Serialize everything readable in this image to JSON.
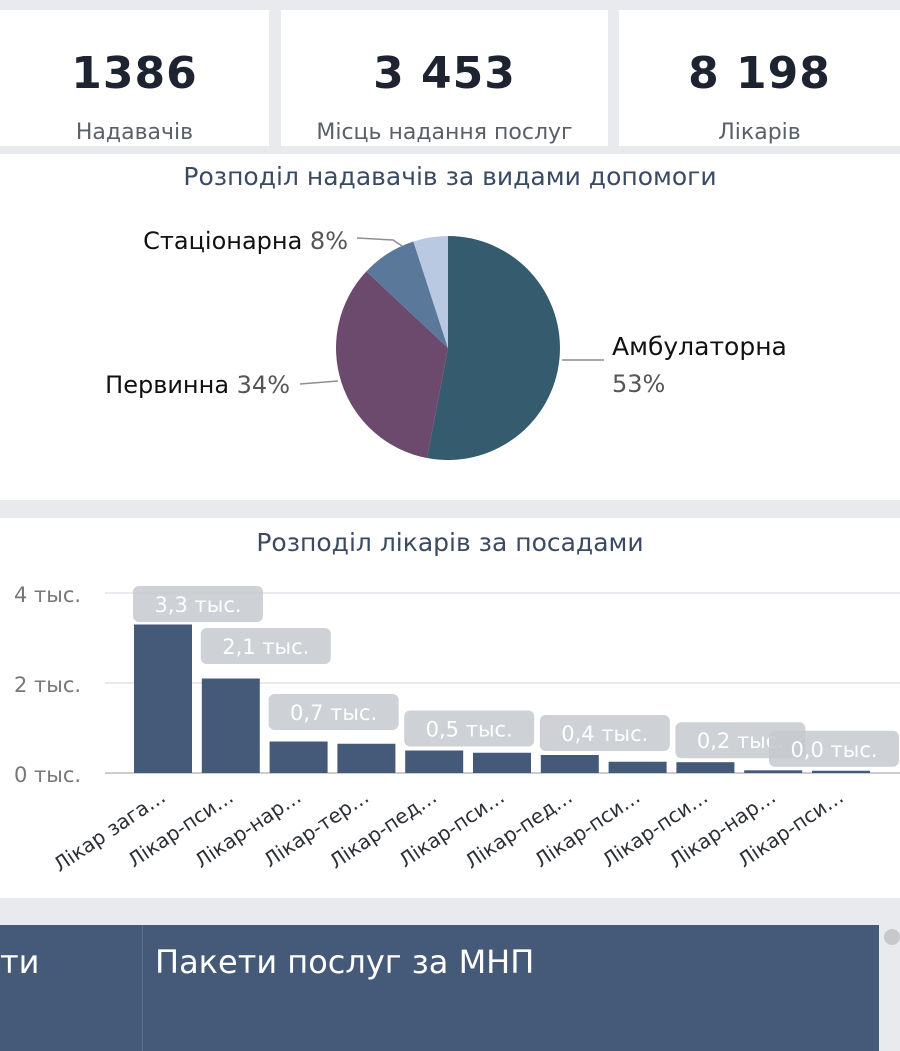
{
  "kpis": [
    {
      "value": "1386",
      "label": "Надавачів"
    },
    {
      "value": "3 453",
      "label": "Місць надання послуг"
    },
    {
      "value": "8 198",
      "label": "Лікарів"
    }
  ],
  "pie_section": {
    "title": "Розподіл надавачів за видами допомоги"
  },
  "bar_section": {
    "title": "Розподіл лікарів за посадами"
  },
  "table": {
    "col1": "ти",
    "col2": "Пакети послуг за МНП"
  },
  "colors": {
    "ambulatory": "#345b6e",
    "primary": "#6c4a6e",
    "inpatient": "#5a7899",
    "other": "#b8c9e1",
    "bars": "#455a78",
    "header_bg": "#455a78"
  },
  "chart_data": [
    {
      "type": "pie",
      "title": "Розподіл надавачів за видами допомоги",
      "slices": [
        {
          "name": "Амбулаторна",
          "value": 53,
          "label": "53%"
        },
        {
          "name": "Первинна",
          "value": 34,
          "label": "34%"
        },
        {
          "name": "Стаціонарна",
          "value": 8,
          "label": "8%"
        },
        {
          "name": "",
          "value": 5,
          "label": ""
        }
      ]
    },
    {
      "type": "bar",
      "title": "Розподіл лікарів за посадами",
      "categories": [
        "Лікар зага…",
        "Лікар-пси…",
        "Лікар-нар…",
        "Лікар-тер…",
        "Лікар-пед…",
        "Лікар-пси…",
        "Лікар-пед…",
        "Лікар-пси…",
        "Лікар-пси…",
        "Лікар-нар…",
        "Лікар-пси…"
      ],
      "values": [
        3.3,
        2.1,
        0.7,
        0.65,
        0.5,
        0.45,
        0.4,
        0.25,
        0.24,
        0.06,
        0.05
      ],
      "data_labels": [
        "3,3 тыс.",
        "2,1 тыс.",
        "0,7 тыс.",
        "",
        "0,5 тыс.",
        "",
        "0,4 тыс.",
        "",
        "0,2 тыс.",
        "",
        "0,0 тыс."
      ],
      "y_ticks": [
        "0 тыс.",
        "2 тыс.",
        "4 тыс."
      ],
      "y_tick_values": [
        0,
        2,
        4
      ],
      "ylim": [
        0,
        4
      ]
    }
  ]
}
